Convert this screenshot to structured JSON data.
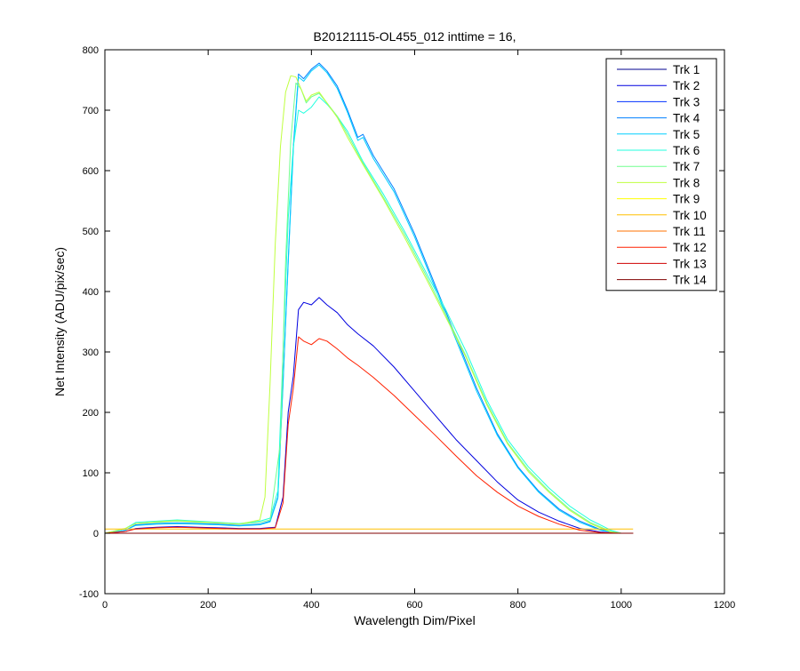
{
  "chart_data": {
    "type": "line",
    "title": "B20121115-OL455_012 inttime = 16,",
    "xlabel": "Wavelength Dim/Pixel",
    "ylabel": "Net Intensity (ADU/pix/sec)",
    "xlim": [
      0,
      1200
    ],
    "ylim": [
      -100,
      800
    ],
    "xticks": [
      0,
      200,
      400,
      600,
      800,
      1000,
      1200
    ],
    "yticks": [
      -100,
      0,
      100,
      200,
      300,
      400,
      500,
      600,
      700,
      800
    ],
    "grid": false,
    "legend_position": "top-right",
    "series": [
      {
        "name": "Trk 1",
        "color": "#00008F",
        "x": [
          0,
          1023
        ],
        "y": [
          0,
          0
        ]
      },
      {
        "name": "Trk 2",
        "color": "#0000DF",
        "x": [
          0,
          40,
          60,
          100,
          140,
          180,
          220,
          260,
          300,
          330,
          345,
          355,
          365,
          375,
          385,
          400,
          415,
          430,
          450,
          470,
          490,
          520,
          560,
          600,
          640,
          680,
          720,
          760,
          800,
          840,
          880,
          920,
          960,
          1000,
          1023
        ],
        "y": [
          0,
          3,
          8,
          10,
          11,
          10,
          9,
          8,
          8,
          10,
          60,
          200,
          260,
          370,
          382,
          378,
          390,
          378,
          365,
          345,
          330,
          310,
          275,
          235,
          195,
          155,
          120,
          85,
          55,
          35,
          20,
          8,
          2,
          0,
          0
        ]
      },
      {
        "name": "Trk 3",
        "color": "#0030FF",
        "x": [
          0,
          1023
        ],
        "y": [
          0,
          0
        ]
      },
      {
        "name": "Trk 4",
        "color": "#0080FF",
        "x": [
          0,
          40,
          60,
          100,
          140,
          180,
          220,
          260,
          300,
          320,
          335,
          345,
          355,
          365,
          375,
          385,
          400,
          415,
          430,
          450,
          470,
          490,
          500,
          520,
          560,
          600,
          640,
          680,
          720,
          760,
          800,
          840,
          880,
          920,
          960,
          990,
          1000
        ],
        "y": [
          0,
          5,
          14,
          16,
          17,
          16,
          15,
          13,
          15,
          20,
          60,
          250,
          450,
          640,
          760,
          752,
          768,
          778,
          765,
          740,
          700,
          655,
          660,
          625,
          570,
          495,
          410,
          325,
          240,
          165,
          110,
          70,
          40,
          20,
          6,
          1,
          0
        ]
      },
      {
        "name": "Trk 5",
        "color": "#00CFFF",
        "x": [
          0,
          40,
          60,
          100,
          140,
          180,
          220,
          260,
          300,
          320,
          335,
          345,
          355,
          365,
          375,
          385,
          400,
          415,
          430,
          450,
          470,
          490,
          500,
          520,
          560,
          600,
          640,
          680,
          720,
          760,
          800,
          840,
          880,
          920,
          960,
          990,
          1000
        ],
        "y": [
          0,
          5,
          13,
          15,
          16,
          15,
          14,
          12,
          14,
          19,
          58,
          245,
          445,
          635,
          755,
          748,
          765,
          775,
          762,
          736,
          696,
          650,
          655,
          620,
          565,
          490,
          405,
          320,
          235,
          162,
          108,
          68,
          38,
          18,
          5,
          1,
          0
        ]
      },
      {
        "name": "Trk 6",
        "color": "#20FFDF",
        "x": [
          0,
          40,
          60,
          100,
          140,
          180,
          220,
          260,
          300,
          320,
          335,
          345,
          355,
          365,
          375,
          385,
          400,
          415,
          430,
          450,
          470,
          500,
          540,
          580,
          620,
          660,
          700,
          740,
          780,
          820,
          860,
          900,
          940,
          980,
          1000
        ],
        "y": [
          0,
          8,
          18,
          20,
          22,
          20,
          18,
          16,
          20,
          25,
          70,
          300,
          520,
          640,
          700,
          695,
          705,
          722,
          710,
          690,
          665,
          615,
          560,
          500,
          435,
          370,
          300,
          220,
          155,
          110,
          75,
          45,
          22,
          5,
          0
        ]
      },
      {
        "name": "Trk 7",
        "color": "#70FF8F",
        "x": [
          0,
          40,
          60,
          100,
          140,
          180,
          220,
          260,
          300,
          320,
          340,
          350,
          360,
          370,
          380,
          390,
          400,
          415,
          430,
          450,
          470,
          500,
          540,
          580,
          620,
          660,
          700,
          740,
          780,
          820,
          860,
          900,
          940,
          980,
          1000
        ],
        "y": [
          0,
          8,
          16,
          18,
          20,
          18,
          17,
          15,
          18,
          22,
          150,
          450,
          650,
          745,
          735,
          712,
          722,
          728,
          712,
          690,
          660,
          612,
          555,
          495,
          430,
          362,
          292,
          215,
          150,
          105,
          70,
          40,
          18,
          3,
          0
        ]
      },
      {
        "name": "Trk 8",
        "color": "#BFFF40",
        "x": [
          0,
          40,
          60,
          100,
          140,
          180,
          220,
          260,
          300,
          310,
          320,
          330,
          340,
          350,
          360,
          370,
          380,
          390,
          400,
          415,
          430,
          450,
          470,
          500,
          540,
          580,
          620,
          660,
          700,
          740,
          780,
          820,
          860,
          900,
          940,
          980,
          1000
        ],
        "y": [
          0,
          8,
          16,
          19,
          21,
          19,
          17,
          15,
          22,
          60,
          250,
          480,
          640,
          730,
          757,
          755,
          735,
          715,
          725,
          730,
          712,
          688,
          655,
          610,
          552,
          490,
          425,
          358,
          290,
          212,
          148,
          102,
          68,
          38,
          16,
          2,
          0
        ]
      },
      {
        "name": "Trk 9",
        "color": "#FFFF00",
        "x": [
          0,
          1023
        ],
        "y": [
          0,
          0
        ]
      },
      {
        "name": "Trk 10",
        "color": "#FFBF00",
        "x": [
          0,
          1023
        ],
        "y": [
          7,
          7
        ]
      },
      {
        "name": "Trk 11",
        "color": "#FF7000",
        "x": [
          0,
          1023
        ],
        "y": [
          0,
          0
        ]
      },
      {
        "name": "Trk 12",
        "color": "#FF2000",
        "x": [
          0,
          40,
          60,
          100,
          140,
          180,
          220,
          260,
          300,
          330,
          345,
          355,
          365,
          375,
          385,
          400,
          415,
          430,
          450,
          470,
          490,
          520,
          560,
          600,
          640,
          680,
          720,
          760,
          800,
          840,
          880,
          920,
          960,
          1000,
          1023
        ],
        "y": [
          0,
          3,
          7,
          9,
          10,
          9,
          8,
          7,
          7,
          9,
          50,
          180,
          240,
          325,
          318,
          312,
          322,
          318,
          305,
          290,
          278,
          258,
          228,
          195,
          162,
          128,
          95,
          68,
          45,
          28,
          15,
          5,
          1,
          0,
          0
        ]
      },
      {
        "name": "Trk 13",
        "color": "#CF0000",
        "x": [
          0,
          1023
        ],
        "y": [
          0,
          0
        ]
      },
      {
        "name": "Trk 14",
        "color": "#800000",
        "x": [
          0,
          1023
        ],
        "y": [
          0,
          0
        ]
      }
    ]
  }
}
